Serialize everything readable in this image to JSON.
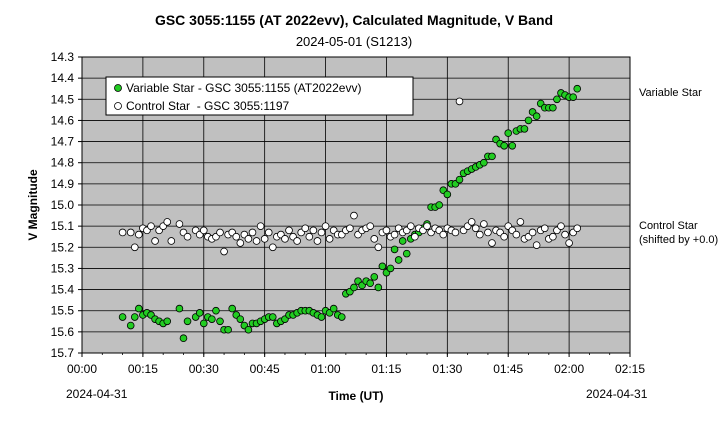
{
  "chart_data": {
    "type": "scatter",
    "title": "GSC 3055:1155 (AT 2022evv),    Calculated Magnitude, V Band",
    "subtitle": "2024-05-01 (S1213)",
    "xlabel": "Time (UT)",
    "ylabel": "V  Magnitude",
    "x_date_left": "2024-04-31",
    "x_date_right": "2024-04-31",
    "xlim": [
      0,
      135
    ],
    "ylim": [
      14.3,
      15.7
    ],
    "y_inverted": true,
    "x_ticks": [
      {
        "v": 0,
        "label": "00:00"
      },
      {
        "v": 15,
        "label": "00:15"
      },
      {
        "v": 30,
        "label": "00:30"
      },
      {
        "v": 45,
        "label": "00:45"
      },
      {
        "v": 60,
        "label": "01:00"
      },
      {
        "v": 75,
        "label": "01:15"
      },
      {
        "v": 90,
        "label": "01:30"
      },
      {
        "v": 105,
        "label": "01:45"
      },
      {
        "v": 120,
        "label": "02:00"
      },
      {
        "v": 135,
        "label": "02:15"
      }
    ],
    "y_ticks": [
      "14.3",
      "14.4",
      "14.5",
      "14.6",
      "14.7",
      "14.8",
      "14.9",
      "15.0",
      "15.1",
      "15.2",
      "15.3",
      "15.4",
      "15.5",
      "15.6",
      "15.7"
    ],
    "grid": true,
    "legend_position": "top-left",
    "side_labels": {
      "variable": "Variable Star",
      "control_line1": "Control Star",
      "control_line2": "(shifted by +0.0)"
    },
    "series": [
      {
        "name": "Variable Star - GSC 3055:1155 (AT2022evv)",
        "color": "#22cc22",
        "points": [
          [
            10,
            15.53
          ],
          [
            12,
            15.57
          ],
          [
            13,
            15.53
          ],
          [
            14,
            15.49
          ],
          [
            15,
            15.52
          ],
          [
            16,
            15.51
          ],
          [
            17,
            15.52
          ],
          [
            18,
            15.54
          ],
          [
            19,
            15.55
          ],
          [
            20,
            15.56
          ],
          [
            21,
            15.55
          ],
          [
            24,
            15.49
          ],
          [
            25,
            15.63
          ],
          [
            26,
            15.55
          ],
          [
            28,
            15.53
          ],
          [
            29,
            15.51
          ],
          [
            30,
            15.56
          ],
          [
            31,
            15.53
          ],
          [
            32,
            15.54
          ],
          [
            33,
            15.5
          ],
          [
            34,
            15.55
          ],
          [
            35,
            15.59
          ],
          [
            36,
            15.59
          ],
          [
            37,
            15.49
          ],
          [
            38,
            15.52
          ],
          [
            39,
            15.54
          ],
          [
            40,
            15.57
          ],
          [
            41,
            15.59
          ],
          [
            42,
            15.56
          ],
          [
            43,
            15.56
          ],
          [
            44,
            15.55
          ],
          [
            45,
            15.54
          ],
          [
            46,
            15.53
          ],
          [
            47,
            15.53
          ],
          [
            48,
            15.56
          ],
          [
            49,
            15.55
          ],
          [
            50,
            15.54
          ],
          [
            51,
            15.52
          ],
          [
            52,
            15.52
          ],
          [
            53,
            15.51
          ],
          [
            54,
            15.5
          ],
          [
            55,
            15.5
          ],
          [
            56,
            15.5
          ],
          [
            57,
            15.51
          ],
          [
            58,
            15.52
          ],
          [
            59,
            15.53
          ],
          [
            60,
            15.5
          ],
          [
            61,
            15.51
          ],
          [
            62,
            15.49
          ],
          [
            63,
            15.52
          ],
          [
            64,
            15.53
          ],
          [
            65,
            15.42
          ],
          [
            66,
            15.41
          ],
          [
            67,
            15.39
          ],
          [
            68,
            15.36
          ],
          [
            69,
            15.38
          ],
          [
            70,
            15.36
          ],
          [
            71,
            15.37
          ],
          [
            72,
            15.34
          ],
          [
            73,
            15.39
          ],
          [
            74,
            15.29
          ],
          [
            75,
            15.32
          ],
          [
            76,
            15.3
          ],
          [
            77,
            15.21
          ],
          [
            78,
            15.26
          ],
          [
            79,
            15.17
          ],
          [
            80,
            15.23
          ],
          [
            81,
            15.16
          ],
          [
            82,
            15.14
          ],
          [
            83,
            15.13
          ],
          [
            84,
            15.11
          ],
          [
            85,
            15.09
          ],
          [
            86,
            15.01
          ],
          [
            87,
            15.01
          ],
          [
            88,
            15.0
          ],
          [
            89,
            14.93
          ],
          [
            90,
            14.95
          ],
          [
            91,
            14.9
          ],
          [
            92,
            14.9
          ],
          [
            93,
            14.88
          ],
          [
            94,
            14.85
          ],
          [
            95,
            14.84
          ],
          [
            96,
            14.83
          ],
          [
            97,
            14.82
          ],
          [
            98,
            14.81
          ],
          [
            99,
            14.8
          ],
          [
            100,
            14.77
          ],
          [
            101,
            14.77
          ],
          [
            102,
            14.69
          ],
          [
            103,
            14.71
          ],
          [
            104,
            14.72
          ],
          [
            105,
            14.66
          ],
          [
            106,
            14.72
          ],
          [
            107,
            14.65
          ],
          [
            108,
            14.64
          ],
          [
            109,
            14.64
          ],
          [
            110,
            14.6
          ],
          [
            111,
            14.56
          ],
          [
            112,
            14.58
          ],
          [
            113,
            14.52
          ],
          [
            114,
            14.54
          ],
          [
            115,
            14.54
          ],
          [
            116,
            14.54
          ],
          [
            117,
            14.5
          ],
          [
            118,
            14.47
          ],
          [
            119,
            14.48
          ],
          [
            120,
            14.49
          ],
          [
            121,
            14.49
          ],
          [
            122,
            14.45
          ]
        ]
      },
      {
        "name": "Control Star  - GSC 3055:1197",
        "color": "#ffffff",
        "points": [
          [
            10,
            15.13
          ],
          [
            12,
            15.13
          ],
          [
            13,
            15.2
          ],
          [
            14,
            15.14
          ],
          [
            15,
            15.11
          ],
          [
            16,
            15.12
          ],
          [
            17,
            15.1
          ],
          [
            18,
            15.17
          ],
          [
            19,
            15.12
          ],
          [
            20,
            15.1
          ],
          [
            21,
            15.08
          ],
          [
            22,
            15.17
          ],
          [
            24,
            15.09
          ],
          [
            25,
            15.13
          ],
          [
            26,
            15.15
          ],
          [
            28,
            15.12
          ],
          [
            29,
            15.14
          ],
          [
            30,
            15.12
          ],
          [
            31,
            15.15
          ],
          [
            32,
            15.16
          ],
          [
            33,
            15.15
          ],
          [
            34,
            15.13
          ],
          [
            35,
            15.22
          ],
          [
            36,
            15.14
          ],
          [
            37,
            15.13
          ],
          [
            38,
            15.15
          ],
          [
            39,
            15.18
          ],
          [
            40,
            15.14
          ],
          [
            41,
            15.16
          ],
          [
            42,
            15.13
          ],
          [
            43,
            15.17
          ],
          [
            44,
            15.1
          ],
          [
            45,
            15.16
          ],
          [
            46,
            15.13
          ],
          [
            47,
            15.2
          ],
          [
            48,
            15.15
          ],
          [
            49,
            15.14
          ],
          [
            50,
            15.16
          ],
          [
            51,
            15.12
          ],
          [
            52,
            15.15
          ],
          [
            53,
            15.17
          ],
          [
            54,
            15.13
          ],
          [
            55,
            15.11
          ],
          [
            56,
            15.15
          ],
          [
            57,
            15.12
          ],
          [
            58,
            15.17
          ],
          [
            59,
            15.13
          ],
          [
            60,
            15.1
          ],
          [
            61,
            15.16
          ],
          [
            62,
            15.12
          ],
          [
            63,
            15.14
          ],
          [
            64,
            15.14
          ],
          [
            65,
            15.12
          ],
          [
            66,
            15.11
          ],
          [
            67,
            15.05
          ],
          [
            68,
            15.14
          ],
          [
            69,
            15.12
          ],
          [
            70,
            15.11
          ],
          [
            71,
            15.1
          ],
          [
            72,
            15.16
          ],
          [
            73,
            15.2
          ],
          [
            74,
            15.13
          ],
          [
            75,
            15.12
          ],
          [
            76,
            15.15
          ],
          [
            77,
            15.14
          ],
          [
            78,
            15.11
          ],
          [
            79,
            15.13
          ],
          [
            80,
            15.12
          ],
          [
            81,
            15.1
          ],
          [
            82,
            15.15
          ],
          [
            83,
            15.11
          ],
          [
            84,
            15.12
          ],
          [
            85,
            15.1
          ],
          [
            86,
            15.13
          ],
          [
            87,
            15.11
          ],
          [
            88,
            15.12
          ],
          [
            89,
            15.14
          ],
          [
            90,
            15.11
          ],
          [
            91,
            15.12
          ],
          [
            92,
            15.13
          ],
          [
            93,
            14.51
          ],
          [
            94,
            15.12
          ],
          [
            95,
            15.1
          ],
          [
            96,
            15.08
          ],
          [
            97,
            15.11
          ],
          [
            98,
            15.14
          ],
          [
            99,
            15.09
          ],
          [
            100,
            15.13
          ],
          [
            101,
            15.18
          ],
          [
            102,
            15.12
          ],
          [
            103,
            15.13
          ],
          [
            104,
            15.15
          ],
          [
            105,
            15.1
          ],
          [
            106,
            15.12
          ],
          [
            107,
            15.14
          ],
          [
            108,
            15.08
          ],
          [
            109,
            15.16
          ],
          [
            110,
            15.15
          ],
          [
            111,
            15.13
          ],
          [
            112,
            15.19
          ],
          [
            113,
            15.12
          ],
          [
            114,
            15.11
          ],
          [
            115,
            15.16
          ],
          [
            116,
            15.15
          ],
          [
            117,
            15.12
          ],
          [
            118,
            15.1
          ],
          [
            119,
            15.14
          ],
          [
            120,
            15.18
          ],
          [
            121,
            15.13
          ],
          [
            122,
            15.11
          ]
        ]
      }
    ]
  }
}
